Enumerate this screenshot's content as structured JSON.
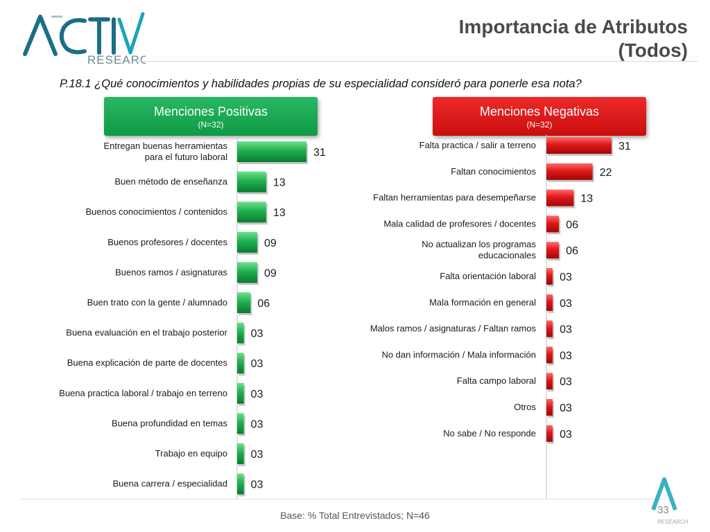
{
  "logo": {
    "word": "ACTIVA",
    "sub": "RESEARCH",
    "corner_sub": "RESEARCH"
  },
  "title": {
    "line1": "Importancia de Atributos",
    "line2": "(Todos)"
  },
  "question": "P.18.1 ¿Qué  conocimientos y habilidades propias de su especialidad consideró para ponerle esa nota?",
  "panels": {
    "positive": {
      "title": "Menciones Positivas",
      "n": "(N=32)",
      "color": "#16a34a"
    },
    "negative": {
      "title": "Menciones Negativas",
      "n": "(N=32)",
      "color": "#dc1414"
    }
  },
  "chart_data": [
    {
      "type": "bar",
      "orientation": "horizontal",
      "title": "Menciones Positivas",
      "categories": [
        [
          "Entregan buenas herramientas",
          "para el futuro laboral"
        ],
        [
          "Buen método de enseñanza"
        ],
        [
          "Buenos conocimientos / contenidos"
        ],
        [
          "Buenos profesores / docentes"
        ],
        [
          "Buenos ramos / asignaturas"
        ],
        [
          "Buen trato con la gente / alumnado"
        ],
        [
          "Buena evaluación en el trabajo posterior"
        ],
        [
          "Buena explicación de parte de docentes"
        ],
        [
          "Buena practica laboral / trabajo en terreno"
        ],
        [
          "Buena profundidad en temas"
        ],
        [
          "Trabajo en equipo"
        ],
        [
          "Buena carrera / especialidad"
        ]
      ],
      "values": [
        31,
        13,
        13,
        9,
        9,
        6,
        3,
        3,
        3,
        3,
        3,
        3
      ],
      "value_labels": [
        "31",
        "13",
        "13",
        "09",
        "09",
        "06",
        "03",
        "03",
        "03",
        "03",
        "03",
        "03"
      ],
      "xlim": [
        0,
        35
      ],
      "color": "#16a34a"
    },
    {
      "type": "bar",
      "orientation": "horizontal",
      "title": "Menciones Negativas",
      "categories": [
        [
          "Falta practica / salir a terreno"
        ],
        [
          "Faltan conocimientos"
        ],
        [
          "Faltan herramientas para desempeñarse"
        ],
        [
          "Mala calidad de profesores / docentes"
        ],
        [
          "No actualizan los programas",
          "educacionales"
        ],
        [
          "Falta orientación laboral"
        ],
        [
          "Mala formación en general"
        ],
        [
          "Malos ramos / asignaturas / Faltan ramos"
        ],
        [
          "No dan información / Mala información"
        ],
        [
          "Falta campo laboral"
        ],
        [
          "Otros"
        ],
        [
          "No sabe / No responde"
        ]
      ],
      "values": [
        31,
        22,
        13,
        6,
        6,
        3,
        3,
        3,
        3,
        3,
        3,
        3
      ],
      "value_labels": [
        "31",
        "22",
        "13",
        "06",
        "06",
        "03",
        "03",
        "03",
        "03",
        "03",
        "03",
        "03"
      ],
      "xlim": [
        0,
        35
      ],
      "color": "#dc1414"
    }
  ],
  "footer": {
    "base": "Base: % Total Entrevistados; N=46",
    "page": "33"
  }
}
